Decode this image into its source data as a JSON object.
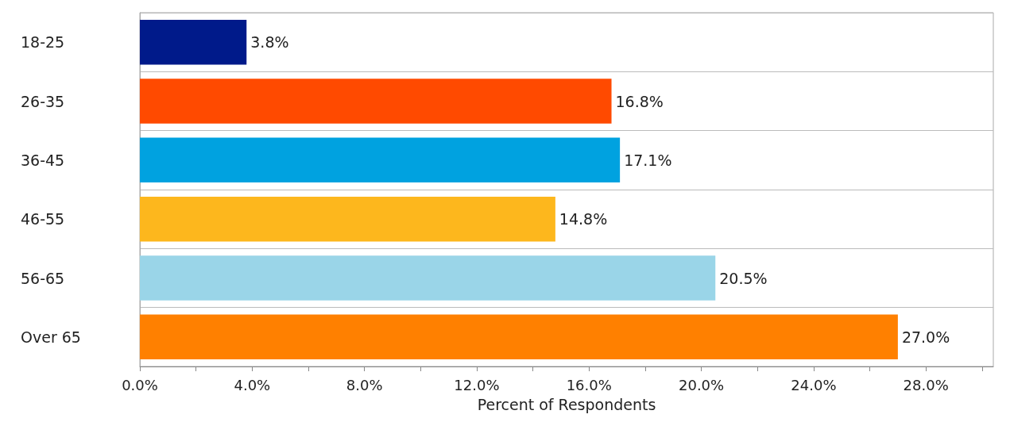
{
  "chart_data": {
    "type": "bar",
    "orientation": "horizontal",
    "xlabel": "Percent of Respondents",
    "categories": [
      "18-25",
      "26-35",
      "36-45",
      "46-55",
      "56-65",
      "Over 65"
    ],
    "values": [
      3.8,
      16.8,
      17.1,
      14.8,
      20.5,
      27.0
    ],
    "colors": [
      "#001a8a",
      "#ff4a00",
      "#00a2e0",
      "#fdb71d",
      "#9ad5e8",
      "#ff8000"
    ],
    "value_labels": [
      "3.8%",
      "16.8%",
      "17.1%",
      "14.8%",
      "20.5%",
      "27.0%"
    ],
    "xlim": [
      0,
      30.4
    ],
    "xticks": [
      {
        "value": 0,
        "label": "0.0%"
      },
      {
        "value": 2,
        "label": null
      },
      {
        "value": 4,
        "label": "4.0%"
      },
      {
        "value": 6,
        "label": null
      },
      {
        "value": 8,
        "label": "8.0%"
      },
      {
        "value": 10,
        "label": null
      },
      {
        "value": 12,
        "label": "12.0%"
      },
      {
        "value": 14,
        "label": null
      },
      {
        "value": 16,
        "label": "16.0%"
      },
      {
        "value": 18,
        "label": null
      },
      {
        "value": 20,
        "label": "20.0%"
      },
      {
        "value": 22,
        "label": null
      },
      {
        "value": 24,
        "label": "24.0%"
      },
      {
        "value": 26,
        "label": null
      },
      {
        "value": 28,
        "label": "28.0%"
      },
      {
        "value": 30,
        "label": null
      }
    ]
  }
}
